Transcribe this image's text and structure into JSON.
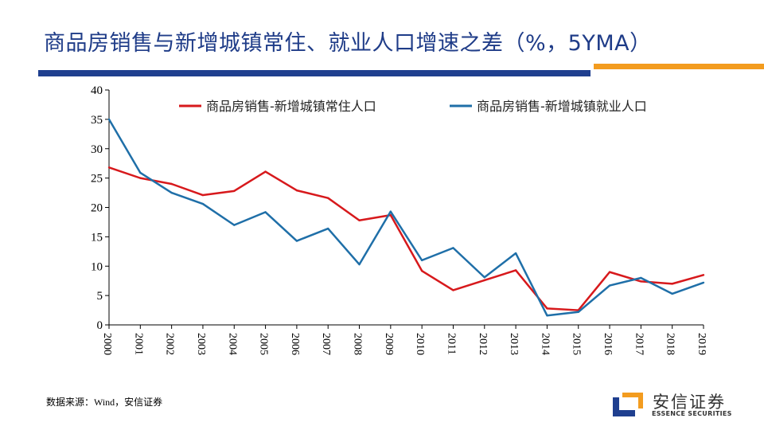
{
  "title": "商品房销售与新增城镇常住、就业人口增速之差（%，5YMA）",
  "source": "数据来源：Wind，安信证券",
  "logo": {
    "cn": "安信证券",
    "en": "ESSENCE SECURITIES"
  },
  "colors": {
    "title": "#1f3c88",
    "bar_blue": "#1f3f8f",
    "bar_orange": "#f39c1f"
  },
  "chart_data": {
    "type": "line",
    "categories": [
      "2000",
      "2001",
      "2002",
      "2003",
      "2004",
      "2005",
      "2006",
      "2007",
      "2008",
      "2009",
      "2010",
      "2011",
      "2012",
      "2013",
      "2014",
      "2015",
      "2016",
      "2017",
      "2018",
      "2019"
    ],
    "ylim": [
      0,
      40
    ],
    "yticks": [
      "0",
      "5",
      "10",
      "15",
      "20",
      "25",
      "30",
      "35",
      "40"
    ],
    "grid": false,
    "legend": "top",
    "series": [
      {
        "name": "商品房销售-新增城镇常住人口",
        "color": "#d7191c",
        "values": [
          26.8,
          25.0,
          24.0,
          22.1,
          22.8,
          26.1,
          22.9,
          21.6,
          17.8,
          18.7,
          9.2,
          5.9,
          7.6,
          9.3,
          2.8,
          2.5,
          9.0,
          7.4,
          7.0,
          8.5
        ]
      },
      {
        "name": "商品房销售-新增城镇就业人口",
        "color": "#1f6fa8",
        "values": [
          35.0,
          25.9,
          22.5,
          20.6,
          17.0,
          19.2,
          14.3,
          16.4,
          10.3,
          19.3,
          11.0,
          13.1,
          8.1,
          12.2,
          1.6,
          2.2,
          6.7,
          8.0,
          5.3,
          7.2
        ]
      }
    ]
  }
}
